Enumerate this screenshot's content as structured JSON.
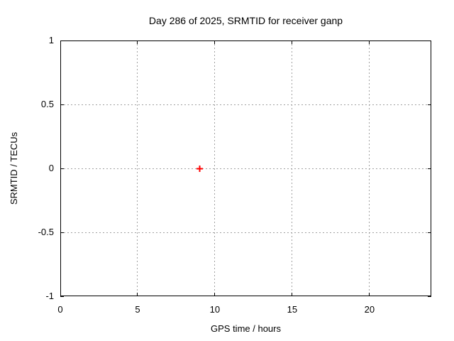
{
  "window": {
    "background": "#ffffff"
  },
  "colors": {
    "background": "#ffffff",
    "border": "#000000",
    "grid": "#a0a0a0",
    "text": "#000000",
    "marker": "#ff0000"
  },
  "chart_data": {
    "type": "scatter",
    "title": "Day 286 of 2025, SRMTID for receiver ganp",
    "xlabel": "GPS time / hours",
    "ylabel": "SRMTID / TECUs",
    "xlim": [
      0,
      24
    ],
    "ylim": [
      -1,
      1
    ],
    "x_ticks": [
      0,
      5,
      10,
      15,
      20
    ],
    "y_ticks": [
      1,
      0.5,
      0,
      -0.5,
      -1
    ],
    "grid": true,
    "legend": "none",
    "series": [
      {
        "name": "SRMTID",
        "marker": "plus",
        "color": "#ff0000",
        "points": [
          {
            "x": 9,
            "y": 0
          }
        ]
      }
    ]
  }
}
